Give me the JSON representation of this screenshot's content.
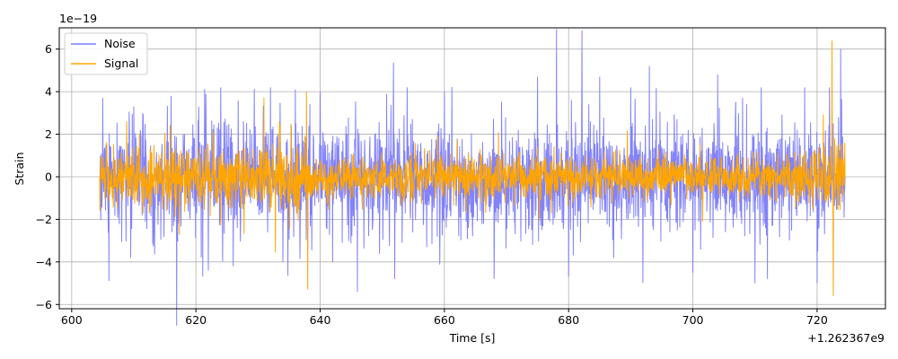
{
  "chart_data": {
    "type": "line",
    "xlabel": "Time [s]",
    "ylabel": "Strain",
    "y_scale_label": "1e−19",
    "x_offset_label": "+1.262367e9",
    "xlim": [
      598,
      731
    ],
    "ylim": [
      -6.2,
      7.0
    ],
    "x_ticks": [
      600,
      620,
      640,
      660,
      680,
      700,
      720
    ],
    "y_ticks": [
      -6,
      -4,
      -2,
      0,
      2,
      4,
      6
    ],
    "grid": true,
    "legend_position": "upper-left",
    "x_range": [
      604.5,
      724.5
    ],
    "series": [
      {
        "name": "Noise",
        "color": "#7b7bfb",
        "values": [
          [
            604.5,
            0.0
          ],
          [
            605.0,
            3.7
          ],
          [
            606.0,
            -4.9
          ],
          [
            610.0,
            3.3
          ],
          [
            616.0,
            3.8
          ],
          [
            622.0,
            -4.4
          ],
          [
            624.0,
            4.2
          ],
          [
            626.0,
            -4.2
          ],
          [
            632.0,
            4.2
          ],
          [
            634.0,
            -4.0
          ],
          [
            636.0,
            4.1
          ],
          [
            638.0,
            -3.4
          ],
          [
            640.0,
            4.0
          ],
          [
            642.0,
            -4.0
          ],
          [
            646.0,
            -5.4
          ],
          [
            652.0,
            -4.8
          ],
          [
            654.0,
            4.2
          ],
          [
            660.0,
            4.0
          ],
          [
            668.0,
            -4.8
          ],
          [
            675.0,
            4.7
          ],
          [
            680.0,
            -4.7
          ],
          [
            685.0,
            4.7
          ],
          [
            690.0,
            4.2
          ],
          [
            693.0,
            5.2
          ],
          [
            700.0,
            -4.5
          ],
          [
            704.0,
            4.8
          ],
          [
            710.0,
            -5.0
          ],
          [
            711.0,
            4.2
          ],
          [
            712.0,
            -4.8
          ],
          [
            718.0,
            4.2
          ],
          [
            720.0,
            -5.0
          ],
          [
            722.0,
            4.2
          ],
          [
            724.5,
            0.0
          ]
        ]
      },
      {
        "name": "Signal",
        "color": "#ffa500",
        "values": [
          [
            604.5,
            0.0
          ],
          [
            610.0,
            1.8
          ],
          [
            620.0,
            2.0
          ],
          [
            630.0,
            2.4
          ],
          [
            637.0,
            2.8
          ],
          [
            637.8,
            4.0
          ],
          [
            638.0,
            -5.3
          ],
          [
            640.0,
            1.2
          ],
          [
            660.0,
            1.4
          ],
          [
            680.0,
            1.4
          ],
          [
            700.0,
            1.6
          ],
          [
            720.0,
            2.2
          ],
          [
            722.4,
            6.4
          ],
          [
            722.6,
            -5.6
          ],
          [
            724.5,
            0.0
          ]
        ]
      }
    ]
  }
}
